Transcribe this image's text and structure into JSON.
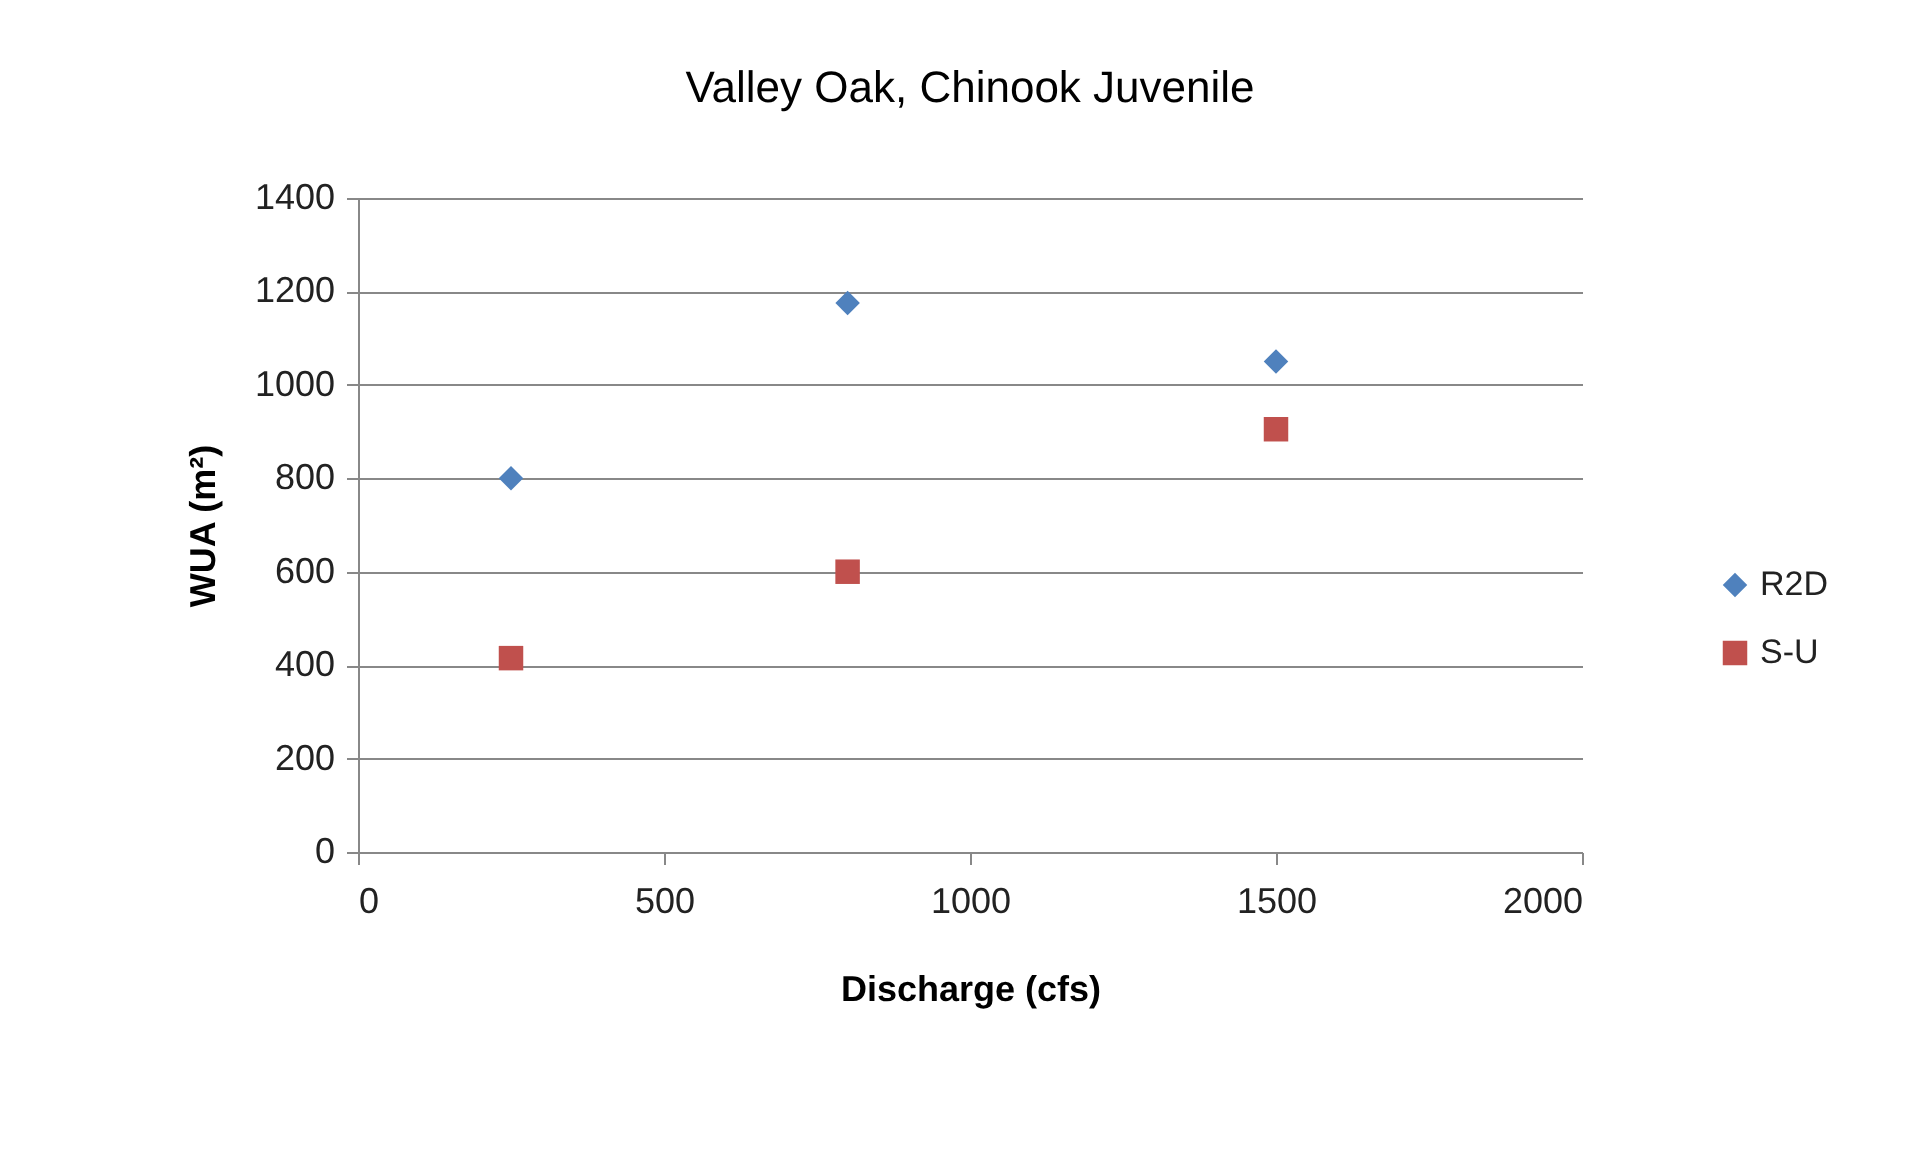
{
  "chart_data": {
    "type": "scatter",
    "title": "Valley Oak, Chinook Juvenile",
    "xlabel": "Discharge (cfs)",
    "ylabel": "WUA (m²)",
    "x": [
      250,
      800,
      1500
    ],
    "series": [
      {
        "name": "R2D",
        "color": "#4f81bd",
        "marker": "diamond",
        "values": [
          800,
          1175,
          1050
        ]
      },
      {
        "name": "S-U",
        "color": "#c0504d",
        "marker": "square",
        "values": [
          415,
          600,
          905
        ]
      }
    ],
    "xlim": [
      0,
      2000
    ],
    "xticks": [
      0,
      500,
      1000,
      1500,
      2000
    ],
    "ylim": [
      0,
      1400
    ],
    "yticks": [
      0,
      200,
      400,
      600,
      800,
      1000,
      1200,
      1400
    ],
    "grid": "y",
    "legend": "right"
  }
}
